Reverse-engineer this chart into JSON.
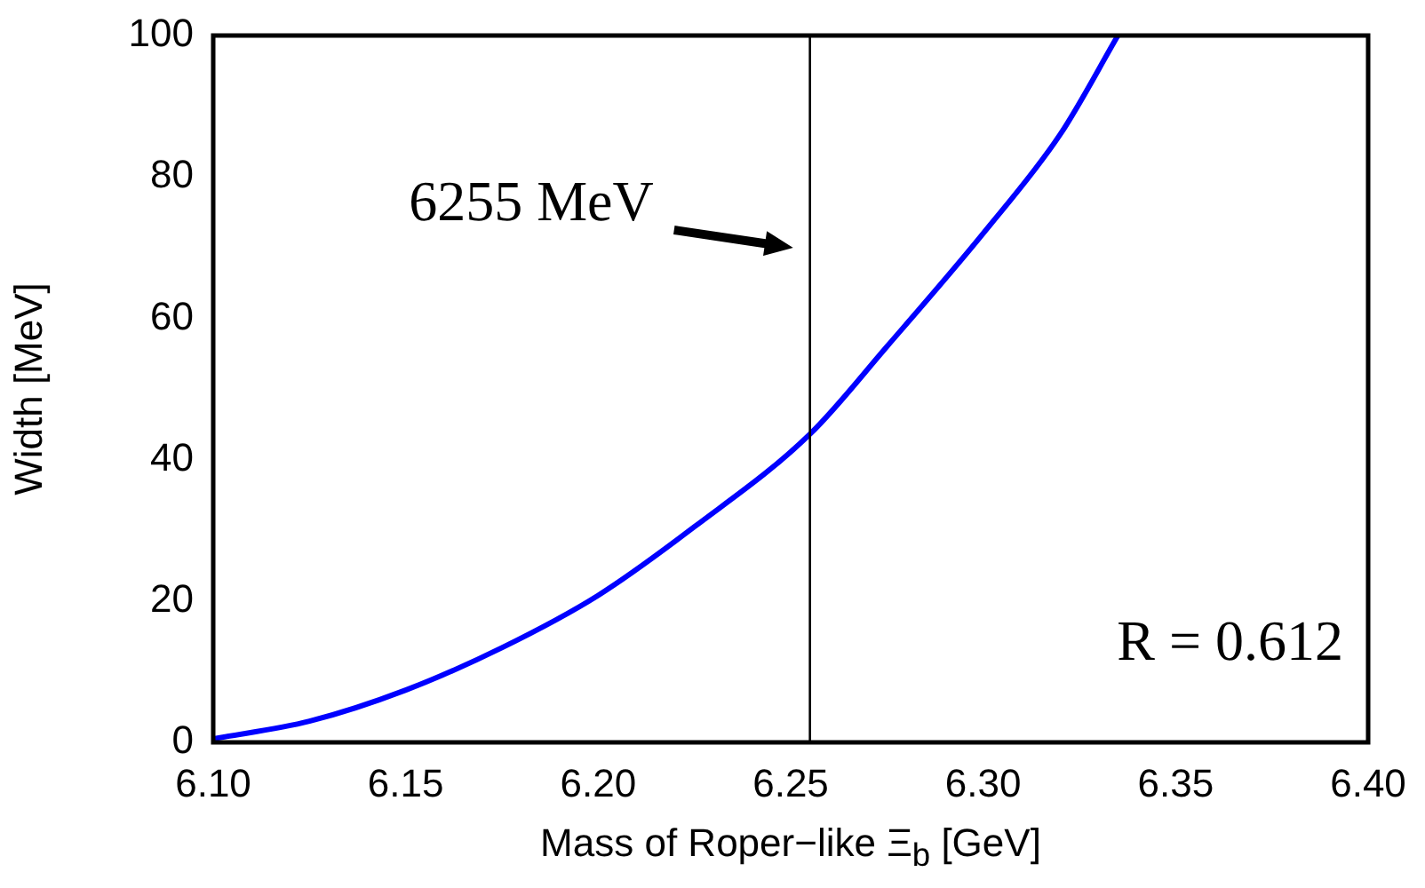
{
  "chart_data": {
    "type": "line",
    "xlabel": "Mass of Roper−like Ξ$_{b}$ [GeV]",
    "ylabel": "Width [MeV]",
    "xlim": [
      6.1,
      6.4
    ],
    "xticks": [
      {
        "value": 6.1,
        "label": "6.10"
      },
      {
        "value": 6.15,
        "label": "6.15"
      },
      {
        "value": 6.2,
        "label": "6.20"
      },
      {
        "value": 6.25,
        "label": "6.25"
      },
      {
        "value": 6.3,
        "label": "6.30"
      },
      {
        "value": 6.35,
        "label": "6.35"
      },
      {
        "value": 6.4,
        "label": "6.40"
      }
    ],
    "ylim": [
      0,
      100
    ],
    "yticks": [
      0,
      20,
      40,
      60,
      80,
      100
    ],
    "series": [
      {
        "color": "#0000ff",
        "x": [
          6.1,
          6.125,
          6.15,
          6.175,
          6.2,
          6.225,
          6.255,
          6.275,
          6.3,
          6.32,
          6.335
        ],
        "values": [
          0.5,
          3,
          7.4,
          13.4,
          20.8,
          30.5,
          43.6,
          56,
          72,
          86,
          100
        ]
      }
    ],
    "ref_lines": [
      {
        "axis": "x",
        "value": 6.255,
        "color": "#000000"
      }
    ],
    "annotations": [
      {
        "text": "6255 MeV",
        "x": 6.255,
        "y": 70
      },
      "R = 0.612"
    ],
    "grid": false,
    "legend": false,
    "marker": "none",
    "line_style": "solid"
  }
}
